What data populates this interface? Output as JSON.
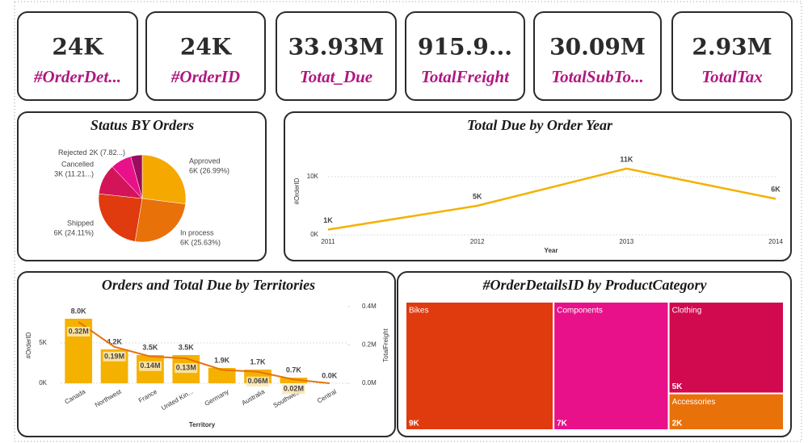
{
  "kpis": [
    {
      "value": "24K",
      "label": "#OrderDet..."
    },
    {
      "value": "24K",
      "label": "#OrderID"
    },
    {
      "value": "33.93M",
      "label": "Totat_Due"
    },
    {
      "value": "915.9...",
      "label": "TotalFreight"
    },
    {
      "value": "30.09M",
      "label": "TotalSubTo..."
    },
    {
      "value": "2.93M",
      "label": "TotalTax"
    }
  ],
  "chart_data": [
    {
      "type": "pie",
      "title": "Status BY Orders",
      "categories": [
        "Approved",
        "In process",
        "Shipped",
        "Cancelled",
        "Rejected",
        null
      ],
      "values": [
        26.99,
        25.63,
        24.11,
        11.21,
        7.82,
        4.24
      ],
      "value_labels": [
        "6K (26.99%)",
        "6K (25.63%)",
        "6K (24.11%)",
        "3K (11.21...)",
        "2K (7.82...)",
        null
      ],
      "colors": [
        "#f5a800",
        "#e8710a",
        "#e03a0f",
        "#d41458",
        "#e8118a",
        "#9b0b5e"
      ]
    },
    {
      "type": "line",
      "title": "Total Due by Order Year",
      "x_label": "Year",
      "y_label": "#OrderID",
      "x": [
        2011,
        2012,
        2013,
        2014
      ],
      "values": [
        900,
        5000,
        11400,
        6200
      ],
      "value_labels": [
        "1K",
        "5K",
        "11K",
        "6K"
      ],
      "color": "#f5b100",
      "xlim": [
        2011,
        2014
      ],
      "xticks": [
        2011,
        2012,
        2013,
        2014
      ],
      "ylim": [
        0,
        15000
      ],
      "yticks": [
        {
          "value": 0,
          "label": "0K"
        },
        {
          "value": 10000,
          "label": "10K"
        }
      ],
      "grid": true
    },
    {
      "type": "bar",
      "title": "Orders and Total Due by Territories",
      "x_label": "Territory",
      "y_label": "#OrderID",
      "y2_label": "TotalFreight",
      "categories": [
        "Canada",
        "Northwest",
        "France",
        "United Kin...",
        "Germany",
        "Australia",
        "Southwest",
        "Central"
      ],
      "series": [
        {
          "color": "#f5b100",
          "values": [
            8000,
            4200,
            3500,
            3500,
            1900,
            1700,
            700,
            0
          ],
          "value_labels": [
            "8.0K",
            "4.2K",
            "3.5K",
            "3.5K",
            "1.9K",
            "1.7K",
            "0.7K",
            "0.0K"
          ]
        },
        {
          "type": "line",
          "axis": "y2",
          "color": "#e8710a",
          "values": [
            320000,
            190000,
            140000,
            130000,
            70000,
            60000,
            20000,
            0
          ],
          "value_labels": [
            "0.32M",
            "0.19M",
            "0.14M",
            "0.13M",
            null,
            "0.06M",
            "0.02M",
            null
          ]
        }
      ],
      "ylim": [
        0,
        9500
      ],
      "yticks": [
        {
          "value": 0,
          "label": "0K"
        },
        {
          "value": 5000,
          "label": "5K"
        }
      ],
      "y2lim": [
        0,
        400000
      ],
      "y2ticks": [
        {
          "value": 0,
          "label": "0.0M"
        },
        {
          "value": 200000,
          "label": "0.2M"
        },
        {
          "value": 400000,
          "label": "0.4M"
        }
      ],
      "grid": true
    },
    {
      "type": "treemap",
      "title": "#OrderDetailsID by ProductCategory",
      "categories": [
        "Bikes",
        "Components",
        "Clothing",
        "Accessories"
      ],
      "values": [
        9000,
        7000,
        5000,
        2000
      ],
      "value_labels": [
        "9K",
        "7K",
        "5K",
        "2K"
      ],
      "colors": [
        "#e03a0f",
        "#e8118a",
        "#d1094f",
        "#e8710a"
      ]
    }
  ]
}
